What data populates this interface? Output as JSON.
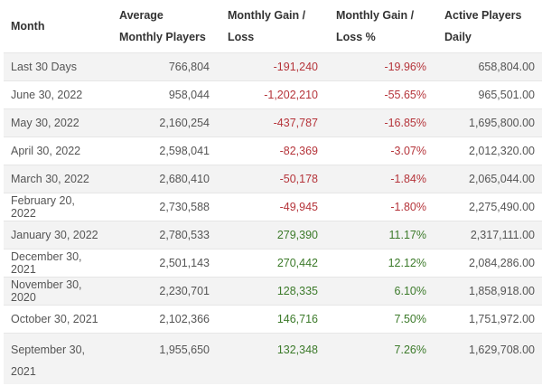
{
  "table": {
    "headers": [
      "Month",
      "Average Monthly Players",
      "Monthly Gain / Loss",
      "Monthly Gain / Loss %",
      "Active Players Daily"
    ],
    "colors": {
      "negative": "#b5343a",
      "positive": "#3c7a2a"
    },
    "rows": [
      {
        "month": "Last 30 Days",
        "avg": "766,804",
        "gain": "-191,240",
        "pct": "-19.96%",
        "daily": "658,804.00"
      },
      {
        "month": "June 30, 2022",
        "avg": "958,044",
        "gain": "-1,202,210",
        "pct": "-55.65%",
        "daily": "965,501.00"
      },
      {
        "month": "May 30, 2022",
        "avg": "2,160,254",
        "gain": "-437,787",
        "pct": "-16.85%",
        "daily": "1,695,800.00"
      },
      {
        "month": "April 30, 2022",
        "avg": "2,598,041",
        "gain": "-82,369",
        "pct": "-3.07%",
        "daily": "2,012,320.00"
      },
      {
        "month": "March 30, 2022",
        "avg": "2,680,410",
        "gain": "-50,178",
        "pct": "-1.84%",
        "daily": "2,065,044.00"
      },
      {
        "month": "February 20, 2022",
        "avg": "2,730,588",
        "gain": "-49,945",
        "pct": "-1.80%",
        "daily": "2,275,490.00"
      },
      {
        "month": "January 30, 2022",
        "avg": "2,780,533",
        "gain": "279,390",
        "pct": "11.17%",
        "daily": "2,317,111.00"
      },
      {
        "month": "December 30, 2021",
        "avg": "2,501,143",
        "gain": "270,442",
        "pct": "12.12%",
        "daily": "2,084,286.00"
      },
      {
        "month": "November 30, 2020",
        "avg": "2,230,701",
        "gain": "128,335",
        "pct": "6.10%",
        "daily": "1,858,918.00"
      },
      {
        "month": "October 30, 2021",
        "avg": "2,102,366",
        "gain": "146,716",
        "pct": "7.50%",
        "daily": "1,751,972.00"
      },
      {
        "month": "September 30, 2021",
        "avg": "1,955,650",
        "gain": "132,348",
        "pct": "7.26%",
        "daily": "1,629,708.00"
      }
    ]
  }
}
